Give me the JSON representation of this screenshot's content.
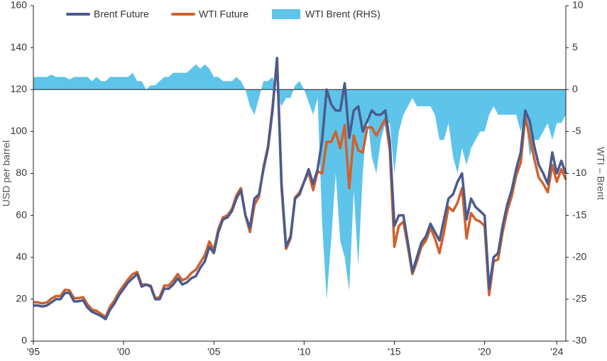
{
  "chart_data": {
    "type": "line",
    "x": [
      1995,
      1995.25,
      1995.5,
      1995.75,
      1996,
      1996.25,
      1996.5,
      1996.75,
      1997,
      1997.25,
      1997.5,
      1997.75,
      1998,
      1998.25,
      1998.5,
      1998.75,
      1999,
      1999.25,
      1999.5,
      1999.75,
      2000,
      2000.25,
      2000.5,
      2000.75,
      2001,
      2001.25,
      2001.5,
      2001.75,
      2002,
      2002.25,
      2002.5,
      2002.75,
      2003,
      2003.25,
      2003.5,
      2003.75,
      2004,
      2004.25,
      2004.5,
      2004.75,
      2005,
      2005.25,
      2005.5,
      2005.75,
      2006,
      2006.25,
      2006.5,
      2006.75,
      2007,
      2007.25,
      2007.5,
      2007.75,
      2008,
      2008.25,
      2008.5,
      2008.75,
      2009,
      2009.25,
      2009.5,
      2009.75,
      2010,
      2010.25,
      2010.5,
      2010.75,
      2011,
      2011.25,
      2011.5,
      2011.75,
      2012,
      2012.25,
      2012.5,
      2012.75,
      2013,
      2013.25,
      2013.5,
      2013.75,
      2014,
      2014.25,
      2014.5,
      2014.75,
      2015,
      2015.25,
      2015.5,
      2015.75,
      2016,
      2016.25,
      2016.5,
      2016.75,
      2017,
      2017.25,
      2017.5,
      2017.75,
      2018,
      2018.25,
      2018.5,
      2018.75,
      2019,
      2019.25,
      2019.5,
      2019.75,
      2020,
      2020.25,
      2020.5,
      2020.75,
      2021,
      2021.25,
      2021.5,
      2021.75,
      2022,
      2022.25,
      2022.5,
      2022.75,
      2023,
      2023.25,
      2023.5,
      2023.75,
      2024,
      2024.25,
      2024.5
    ],
    "series": [
      {
        "name": "Brent Future",
        "color": "#4a5b8e",
        "values": [
          17,
          17,
          16.5,
          17,
          18.5,
          20,
          20,
          23,
          23,
          19,
          19,
          19.5,
          16,
          14,
          13,
          12,
          10.5,
          15,
          18,
          22,
          25,
          28,
          30,
          32,
          26,
          27,
          26,
          20,
          20,
          25,
          25,
          27,
          30,
          27,
          28,
          30,
          31,
          35,
          38,
          45,
          42,
          52,
          58,
          59,
          62,
          68,
          72,
          60,
          54,
          68,
          70,
          82,
          92,
          110,
          135,
          75,
          45,
          50,
          68,
          70,
          76,
          82,
          75,
          82,
          96,
          120,
          113,
          110,
          110,
          123,
          97,
          110,
          112,
          100,
          105,
          110,
          108,
          108,
          110,
          95,
          55,
          60,
          60,
          47,
          33,
          40,
          47,
          50,
          56,
          52,
          48,
          58,
          68,
          70,
          76,
          80,
          58,
          68,
          64,
          62,
          60,
          25,
          40,
          42,
          55,
          65,
          72,
          82,
          90,
          110,
          105,
          93,
          84,
          80,
          75,
          90,
          80,
          86,
          80
        ]
      },
      {
        "name": "WTI Future",
        "color": "#d0612c",
        "values": [
          18.5,
          18.5,
          18,
          18.5,
          20.3,
          21.5,
          21.5,
          24.5,
          24.2,
          20.5,
          20.5,
          21,
          17.5,
          15,
          14.5,
          13,
          11.5,
          16.5,
          19.5,
          23.5,
          26.5,
          29.5,
          32,
          33,
          27,
          27,
          26.5,
          20.5,
          21,
          26.5,
          26.5,
          29,
          32,
          29,
          30,
          32.5,
          34,
          37.5,
          41,
          47.5,
          43.5,
          53.5,
          59,
          60,
          63,
          69.5,
          73,
          60,
          52,
          65,
          69,
          83,
          93,
          111.5,
          134.5,
          73,
          44,
          49,
          68.5,
          71,
          76,
          80.5,
          72,
          81,
          80,
          95,
          95,
          100,
          92,
          103,
          73,
          98,
          91,
          90,
          102,
          102,
          98,
          102,
          106,
          91,
          45,
          55,
          57,
          45,
          32,
          38,
          45,
          48,
          54,
          49,
          42,
          52,
          64,
          62,
          66,
          73,
          49,
          61,
          58,
          57,
          55,
          22,
          38,
          39,
          52,
          62,
          69,
          79,
          85,
          107,
          97,
          87,
          78,
          75,
          71,
          84,
          76,
          82,
          77
        ]
      },
      {
        "name": "WTI Brent (RHS)",
        "color": "#5ec4ea",
        "axis": "y2",
        "values": [
          1.5,
          1.5,
          1.5,
          1.5,
          1.8,
          1.5,
          1.5,
          1.5,
          1.2,
          1.5,
          1.5,
          1.5,
          1.5,
          1.0,
          1.5,
          1.0,
          1.0,
          1.5,
          1.5,
          1.5,
          1.5,
          1.5,
          2.0,
          1.0,
          1.0,
          0.0,
          0.5,
          0.5,
          1.0,
          1.5,
          1.5,
          2.0,
          2.0,
          2.0,
          2.0,
          2.5,
          3.0,
          2.5,
          3.0,
          2.5,
          1.5,
          1.5,
          1.0,
          1.0,
          1.0,
          1.5,
          1.0,
          0.0,
          -2.0,
          -3.0,
          -1.0,
          1.0,
          1.0,
          1.5,
          -0.5,
          -2.0,
          -1.0,
          -1.0,
          0.5,
          1.0,
          0.0,
          -1.5,
          -3.0,
          -1.0,
          -16.0,
          -25.0,
          -18.0,
          -10.0,
          -18.0,
          -20.0,
          -24.0,
          -12.0,
          -21.0,
          -10.0,
          -3.0,
          -8.0,
          -10.0,
          -6.0,
          -4.0,
          -4.0,
          -10.0,
          -5.0,
          -3.0,
          -2.0,
          -1.0,
          -2.0,
          -2.0,
          -2.0,
          -2.0,
          -3.0,
          -6.0,
          -6.0,
          -4.0,
          -8.0,
          -10.0,
          -7.0,
          -9.0,
          -7.0,
          -6.0,
          -5.0,
          -5.0,
          -3.0,
          -2.0,
          -3.0,
          -3.0,
          -3.0,
          -3.0,
          -3.0,
          -5.0,
          -3.0,
          -8.0,
          -6.0,
          -6.0,
          -5.0,
          -4.0,
          -6.0,
          -4.0,
          -4.0,
          -3.0
        ]
      }
    ],
    "y_label": "USD per barrel",
    "y2_label": "WTI – Brent",
    "xlim": [
      1995,
      2024.5
    ],
    "xticks": [
      {
        "value": 1995,
        "label": "'95"
      },
      {
        "value": 2000,
        "label": "'00"
      },
      {
        "value": 2005,
        "label": "'05"
      },
      {
        "value": 2010,
        "label": "'10"
      },
      {
        "value": 2015,
        "label": "'15"
      },
      {
        "value": 2020,
        "label": "'20"
      },
      {
        "value": 2024,
        "label": "'24"
      }
    ],
    "ylim": [
      0,
      160
    ],
    "yticks": [
      0,
      20,
      40,
      60,
      80,
      100,
      120,
      140,
      160
    ],
    "y2lim": [
      -30,
      10
    ],
    "y2ticks": [
      -30,
      -25,
      -20,
      -15,
      -10,
      -5,
      0,
      5,
      10
    ]
  }
}
